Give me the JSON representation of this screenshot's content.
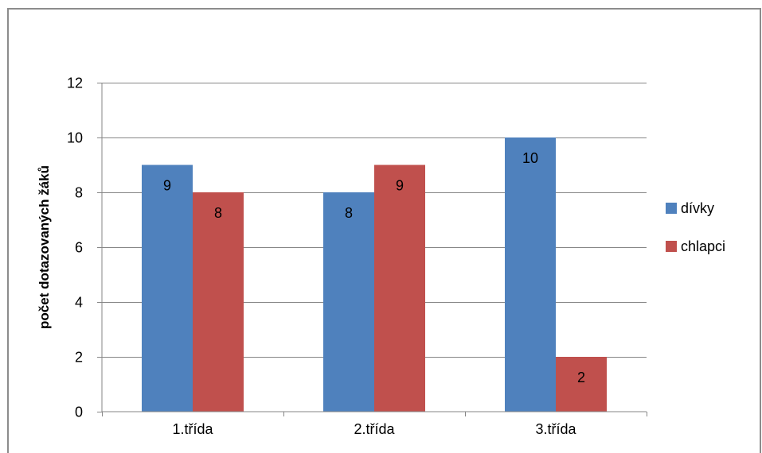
{
  "chart_data": {
    "type": "bar",
    "title": "",
    "xlabel": "",
    "ylabel": "počet dotazovaných žáků",
    "categories": [
      "1.třída",
      "2.třída",
      "3.třída"
    ],
    "series": [
      {
        "name": "dívky",
        "color": "#4F81BD",
        "values": [
          9,
          8,
          10
        ]
      },
      {
        "name": "chlapci",
        "color": "#C0504D",
        "values": [
          8,
          9,
          2
        ]
      }
    ],
    "ylim": [
      0,
      12
    ],
    "yticks": [
      0,
      2,
      4,
      6,
      8,
      10,
      12
    ],
    "grid": true,
    "legend_position": "right",
    "data_labels": true
  }
}
